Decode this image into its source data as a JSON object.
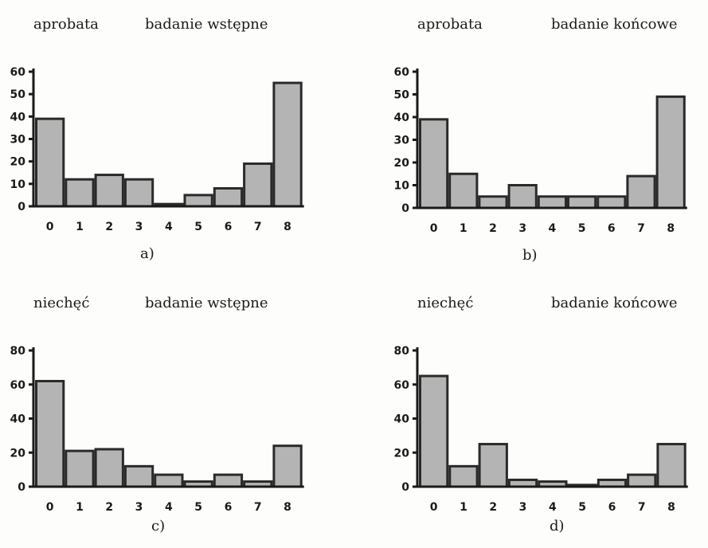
{
  "chart_data": [
    {
      "type": "bar",
      "id": "a",
      "title_left": "aprobata",
      "title_right": "badanie wstępne",
      "sublabel": "a)",
      "categories": [
        "0",
        "1",
        "2",
        "3",
        "4",
        "5",
        "6",
        "7",
        "8"
      ],
      "values": [
        39,
        12,
        14,
        12,
        1,
        5,
        8,
        19,
        55
      ],
      "ylim": [
        0,
        60
      ],
      "yticks": [
        0,
        10,
        20,
        30,
        40,
        50,
        60
      ],
      "xlabel": "",
      "ylabel": ""
    },
    {
      "type": "bar",
      "id": "b",
      "title_left": "aprobata",
      "title_right": "badanie końcowe",
      "sublabel": "b)",
      "categories": [
        "0",
        "1",
        "2",
        "3",
        "4",
        "5",
        "6",
        "7",
        "8"
      ],
      "values": [
        39,
        15,
        5,
        10,
        5,
        5,
        5,
        14,
        49
      ],
      "ylim": [
        0,
        60
      ],
      "yticks": [
        0,
        10,
        20,
        30,
        40,
        50,
        60
      ],
      "xlabel": "",
      "ylabel": ""
    },
    {
      "type": "bar",
      "id": "c",
      "title_left": "niechęć",
      "title_right": "badanie wstępne",
      "sublabel": "c)",
      "categories": [
        "0",
        "1",
        "2",
        "3",
        "4",
        "5",
        "6",
        "7",
        "8"
      ],
      "values": [
        62,
        21,
        22,
        12,
        7,
        3,
        7,
        3,
        24
      ],
      "ylim": [
        0,
        80
      ],
      "yticks": [
        0,
        20,
        40,
        60,
        80
      ],
      "xlabel": "",
      "ylabel": ""
    },
    {
      "type": "bar",
      "id": "d",
      "title_left": "niechęć",
      "title_right": "badanie końcowe",
      "sublabel": "d)",
      "categories": [
        "0",
        "1",
        "2",
        "3",
        "4",
        "5",
        "6",
        "7",
        "8"
      ],
      "values": [
        65,
        12,
        25,
        4,
        3,
        1,
        4,
        7,
        25
      ],
      "ylim": [
        0,
        80
      ],
      "yticks": [
        0,
        20,
        40,
        60,
        80
      ],
      "xlabel": "",
      "ylabel": ""
    }
  ]
}
